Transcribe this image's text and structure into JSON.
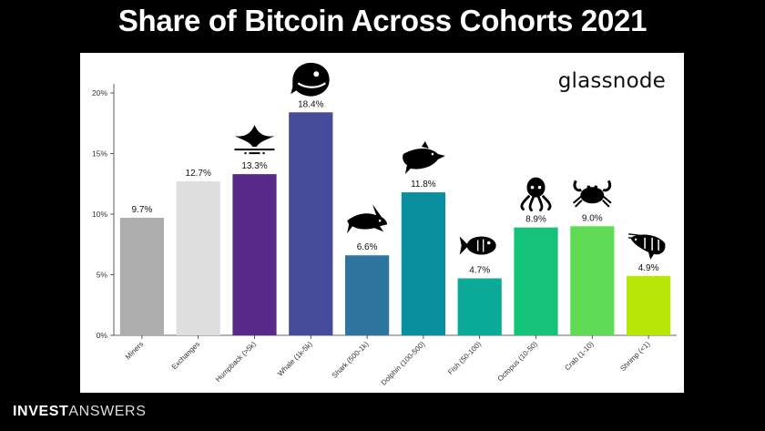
{
  "page": {
    "title": "Share of Bitcoin Across Cohorts 2021",
    "brand_logo": "glassnode",
    "footer_bold": "INVEST",
    "footer_light": "ANSWERS"
  },
  "chart_data": {
    "type": "bar",
    "categories": [
      "Miners",
      "Exchanges",
      "Humpback (>5k)",
      "Whale (1k-5k)",
      "Shark (500-1k)",
      "Dolphin (100-500)",
      "Fish (50-100)",
      "Octopus (10-50)",
      "Crab (1-10)",
      "Shrimp (<1)"
    ],
    "values": [
      9.7,
      12.7,
      13.3,
      18.4,
      6.6,
      11.8,
      4.7,
      8.9,
      9.0,
      4.9
    ],
    "value_labels": [
      "9.7%",
      "12.7%",
      "13.3%",
      "18.4%",
      "6.6%",
      "11.8%",
      "4.7%",
      "8.9%",
      "9.0%",
      "4.9%"
    ],
    "colors": [
      "#adadad",
      "#dedede",
      "#5a2a8a",
      "#474a9a",
      "#2e75a0",
      "#0a8f9e",
      "#0aaa96",
      "#14c27a",
      "#5fdb56",
      "#b8e80a"
    ],
    "icons": [
      null,
      null,
      "humpback-whale-tail-icon",
      "whale-icon",
      "shark-icon",
      "dolphin-icon",
      "fish-icon",
      "octopus-icon",
      "crab-icon",
      "shrimp-icon"
    ],
    "yticks": [
      0,
      5,
      10,
      15,
      20
    ],
    "ytick_labels": [
      "0%",
      "5%",
      "10%",
      "15%",
      "20%"
    ],
    "ylim": [
      0,
      20
    ],
    "grid": false,
    "xlabel": "",
    "ylabel": ""
  }
}
